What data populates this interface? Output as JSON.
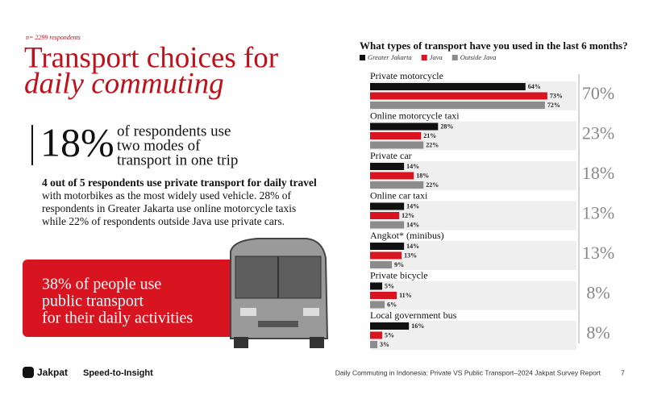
{
  "respondents": "n= 2299 respondents",
  "title": {
    "lines": [
      "Transport choices for",
      "daily commuting"
    ]
  },
  "stat": {
    "figure": "18%",
    "lines": [
      "of respondents use",
      "two modes of",
      "transport in one trip"
    ]
  },
  "body": {
    "lines": [
      "4 out of 5 respondents use private transport for daily travel",
      "with motorbikes as the most widely used vehicle. 28% of",
      "respondents in Greater Jakarta use online motorcycle taxis",
      "while 22% of respondents outside Java use private cars."
    ]
  },
  "callout": {
    "lines": [
      "38% of people use",
      "public transport",
      "for their daily activities"
    ]
  },
  "footer": {
    "brand": "Jakpat",
    "tagline": "Speed-to-Insight",
    "report": "Daily Commuting in Indonesia: Private VS Public Transport–2024 Jakpat Survey Report",
    "page": "7"
  },
  "chart_data": {
    "type": "hbar",
    "title": "What types of transport have you used in the last 6 months?",
    "categories": [
      "Private motorcycle",
      "Online motorcycle taxi",
      "Private car",
      "Online car taxi",
      "Angkot* (minibus)",
      "Private bicycle",
      "Local government bus"
    ],
    "series": [
      {
        "name": "Greater Jakarta",
        "color": "#111111",
        "values": [
          64,
          28,
          14,
          14,
          14,
          5,
          16
        ],
        "value_labels": [
          "64%",
          "28%",
          "14%",
          "14%",
          "14%",
          "5%",
          "16%"
        ]
      },
      {
        "name": "Java",
        "color": "#d7141f",
        "values": [
          73,
          21,
          18,
          12,
          13,
          11,
          5
        ],
        "value_labels": [
          "73%",
          "21%",
          "18%",
          "12%",
          "13%",
          "11%",
          "5%"
        ]
      },
      {
        "name": "Outside Java",
        "color": "#8c8c8c",
        "values": [
          72,
          22,
          22,
          14,
          9,
          6,
          3
        ],
        "value_labels": [
          "72%",
          "22%",
          "22%",
          "14%",
          "9%",
          "6%",
          "3%"
        ]
      }
    ],
    "totals": [
      70,
      23,
      18,
      13,
      13,
      8,
      8
    ],
    "total_labels": [
      "70%",
      "23%",
      "18%",
      "13%",
      "13%",
      "8%",
      "8%"
    ],
    "xlim": [
      0,
      85
    ]
  }
}
